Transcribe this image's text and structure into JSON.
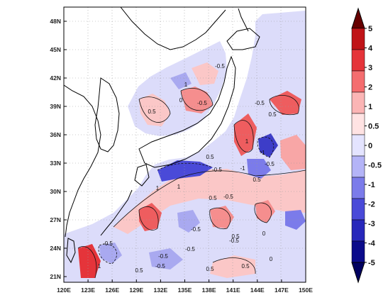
{
  "map": {
    "lat_ticks": [
      "21N",
      "24N",
      "27N",
      "30N",
      "33N",
      "36N",
      "39N",
      "42N",
      "45N",
      "48N"
    ],
    "lon_ticks": [
      "120E",
      "123E",
      "126E",
      "129E",
      "132E",
      "135E",
      "138E",
      "141E",
      "144E",
      "147E",
      "150E"
    ],
    "contour_labels": [
      "-0.5",
      "0.5",
      "0",
      "-0.5",
      "1",
      "-0.5",
      "0.5",
      "1",
      "-1",
      "-0.5",
      "0.5",
      "-1",
      "-0.5",
      "0.5",
      "-0.5",
      "1",
      "1",
      "0.5",
      "-0.5",
      "0.5",
      "0",
      "-0.5",
      "0.5",
      "-0.5",
      "0.5",
      "0",
      "-0.5",
      "0.5",
      "1",
      "-0.5",
      "-0.5"
    ],
    "colors": {
      "land": "#ffffff",
      "coast": "#000000",
      "grid": "#9a9a9a"
    }
  },
  "colorbar": {
    "labels": [
      "5",
      "4",
      "3",
      "2",
      "1",
      "0.5",
      "0",
      "-0.5",
      "-1",
      "-2",
      "-3",
      "-4",
      "-5"
    ],
    "colors": [
      "#670000",
      "#c01418",
      "#e5343a",
      "#f46d6f",
      "#fbb5b5",
      "#ffe3e3",
      "#e4e4ff",
      "#b4b4f7",
      "#7b7bea",
      "#4a4ad8",
      "#2727bb",
      "#0b0b8b",
      "#000060"
    ]
  }
}
